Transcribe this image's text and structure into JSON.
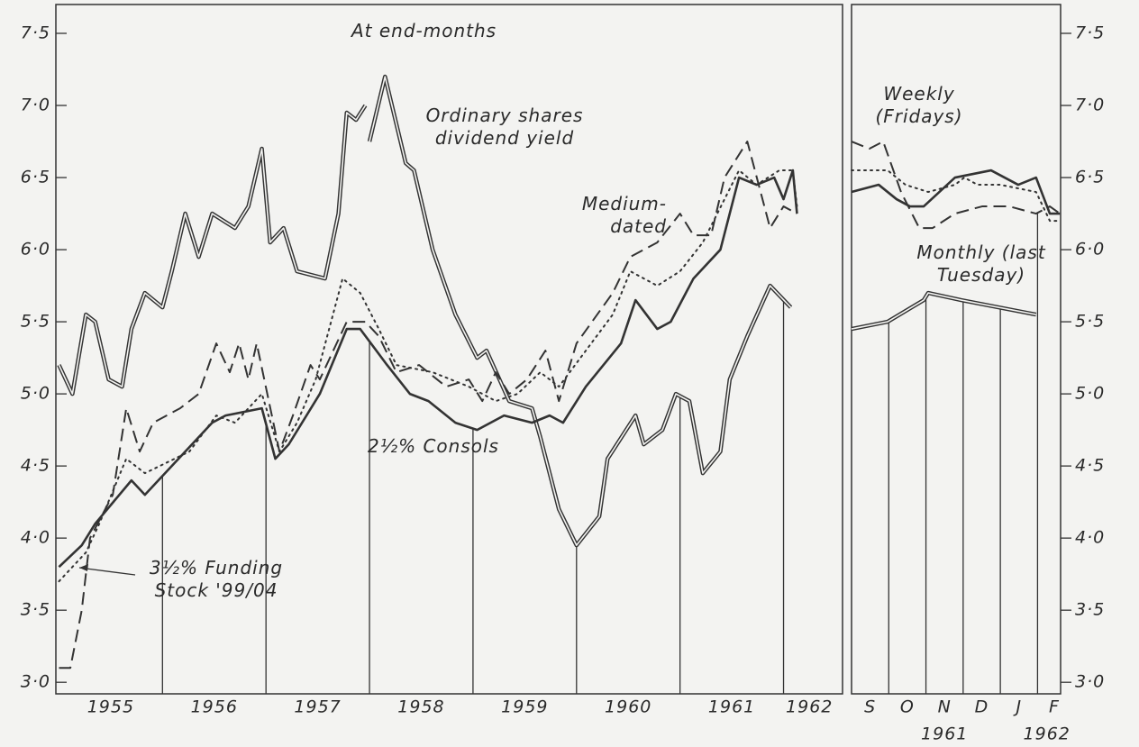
{
  "chart_data": [
    {
      "type": "line",
      "annotations": [
        "At end-months"
      ],
      "xlim": [
        1954.97,
        1962.57
      ],
      "ylim": [
        2.92,
        7.7
      ],
      "ytick_side": "left",
      "yticks": [
        {
          "value": 3.0,
          "label": "3·0"
        },
        {
          "value": 3.5,
          "label": "3·5"
        },
        {
          "value": 4.0,
          "label": "4·0"
        },
        {
          "value": 4.5,
          "label": "4·5"
        },
        {
          "value": 5.0,
          "label": "5·0"
        },
        {
          "value": 5.5,
          "label": "5·5"
        },
        {
          "value": 6.0,
          "label": "6·0"
        },
        {
          "value": 6.5,
          "label": "6·5"
        },
        {
          "value": 7.0,
          "label": "7·0"
        },
        {
          "value": 7.5,
          "label": "7·5"
        }
      ],
      "xticks": [
        {
          "value": 1955.5,
          "label": "1955"
        },
        {
          "value": 1956.5,
          "label": "1956"
        },
        {
          "value": 1957.5,
          "label": "1957"
        },
        {
          "value": 1958.5,
          "label": "1958"
        },
        {
          "value": 1959.5,
          "label": "1959"
        },
        {
          "value": 1960.5,
          "label": "1960"
        },
        {
          "value": 1961.5,
          "label": "1961"
        },
        {
          "value": 1962.25,
          "label": "1962"
        }
      ],
      "vlines": [
        1956,
        1957,
        1958,
        1959,
        1960,
        1961,
        1962
      ],
      "series": [
        {
          "name": "Ordinary shares dividend yield",
          "style": "double",
          "color": "#333333",
          "x": [
            1955.0,
            1955.13,
            1955.26,
            1955.35,
            1955.48,
            1955.61,
            1955.7,
            1955.83,
            1956.0,
            1956.09,
            1956.22,
            1956.35,
            1956.48,
            1956.7,
            1956.83,
            1956.96,
            1957.04,
            1957.17,
            1957.3,
            1957.57,
            1957.7,
            1957.78,
            1957.87,
            1957.96,
            1957.98,
            1958.0,
            1958.15,
            1958.35,
            1958.43,
            1958.61,
            1958.83,
            1959.04,
            1959.13,
            1959.35,
            1959.57,
            1959.65,
            1959.83,
            1960.0,
            1960.22,
            1960.3,
            1960.57,
            1960.65,
            1960.83,
            1960.96,
            1961.09,
            1961.22,
            1961.39,
            1961.48,
            1961.65,
            1961.87,
            1962.07
          ],
          "values": [
            5.2,
            5.0,
            5.55,
            5.5,
            5.1,
            5.05,
            5.45,
            5.7,
            5.6,
            5.85,
            6.25,
            5.95,
            6.25,
            6.15,
            6.3,
            6.7,
            6.05,
            6.15,
            5.85,
            5.8,
            6.25,
            6.95,
            6.9,
            7.0,
            null,
            6.75,
            7.2,
            6.6,
            6.55,
            6.0,
            5.55,
            5.25,
            5.3,
            4.95,
            4.9,
            4.7,
            4.2,
            3.95,
            4.15,
            4.55,
            4.85,
            4.65,
            4.75,
            5.0,
            4.95,
            4.45,
            4.6,
            5.1,
            5.4,
            5.75,
            5.6
          ]
        },
        {
          "name": "2½% Consols",
          "style": "solid",
          "color": "#333333",
          "x": [
            1955.0,
            1955.22,
            1955.35,
            1955.7,
            1955.83,
            1956.09,
            1956.22,
            1956.48,
            1956.61,
            1956.96,
            1957.09,
            1957.22,
            1957.52,
            1957.78,
            1957.91,
            1958.17,
            1958.39,
            1958.57,
            1958.83,
            1959.04,
            1959.3,
            1959.57,
            1959.74,
            1959.87,
            1960.09,
            1960.43,
            1960.57,
            1960.78,
            1960.91,
            1961.13,
            1961.39,
            1961.57,
            1961.74,
            1961.91,
            1962.0,
            1962.09,
            1962.13
          ],
          "values": [
            3.8,
            3.95,
            4.1,
            4.4,
            4.3,
            4.5,
            4.6,
            4.8,
            4.85,
            4.9,
            4.55,
            4.65,
            5.0,
            5.45,
            5.45,
            5.2,
            5.0,
            4.95,
            4.8,
            4.75,
            4.85,
            4.8,
            4.85,
            4.8,
            5.05,
            5.35,
            5.65,
            5.45,
            5.5,
            5.8,
            6.0,
            6.5,
            6.45,
            6.5,
            6.35,
            6.55,
            6.25
          ]
        },
        {
          "name": "Medium-dated",
          "style": "dashed",
          "color": "#333333",
          "x": [
            1955.0,
            1955.11,
            1955.22,
            1955.3,
            1955.52,
            1955.65,
            1955.78,
            1955.91,
            1956.17,
            1956.35,
            1956.52,
            1956.65,
            1956.74,
            1956.83,
            1956.91,
            1957.13,
            1957.26,
            1957.43,
            1957.52,
            1957.78,
            1957.96,
            1958.09,
            1958.26,
            1958.48,
            1958.74,
            1958.96,
            1959.09,
            1959.22,
            1959.35,
            1959.52,
            1959.7,
            1959.83,
            1960.0,
            1960.35,
            1960.52,
            1960.78,
            1961.0,
            1961.13,
            1961.3,
            1961.43,
            1961.65,
            1961.87,
            1962.0,
            1962.13
          ],
          "values": [
            3.1,
            3.1,
            3.5,
            4.0,
            4.3,
            4.9,
            4.6,
            4.8,
            4.9,
            5.0,
            5.35,
            5.15,
            5.35,
            5.1,
            5.35,
            4.6,
            4.85,
            5.2,
            5.1,
            5.5,
            5.5,
            5.4,
            5.15,
            5.2,
            5.05,
            5.1,
            4.95,
            5.15,
            5.0,
            5.1,
            5.3,
            4.95,
            5.35,
            5.7,
            5.95,
            6.05,
            6.25,
            6.1,
            6.1,
            6.5,
            6.75,
            6.15,
            6.3,
            6.25
          ]
        },
        {
          "name": "3½% Funding Stock '99/04",
          "style": "dotted",
          "color": "#333333",
          "x": [
            1955.0,
            1955.26,
            1955.39,
            1955.65,
            1955.83,
            1956.26,
            1956.52,
            1956.7,
            1956.96,
            1957.13,
            1957.3,
            1957.48,
            1957.74,
            1957.91,
            1958.09,
            1958.26,
            1958.61,
            1958.96,
            1959.22,
            1959.43,
            1959.65,
            1959.83,
            1960.09,
            1960.35,
            1960.52,
            1960.78,
            1961.0,
            1961.22,
            1961.57,
            1961.74,
            1961.96,
            1962.09,
            1962.13
          ],
          "values": [
            3.7,
            3.9,
            4.1,
            4.55,
            4.45,
            4.6,
            4.85,
            4.8,
            5.0,
            4.6,
            4.8,
            5.1,
            5.8,
            5.7,
            5.45,
            5.2,
            5.15,
            5.05,
            4.95,
            5.0,
            5.15,
            5.05,
            5.3,
            5.55,
            5.85,
            5.75,
            5.85,
            6.05,
            6.55,
            6.45,
            6.55,
            6.55,
            6.3
          ]
        }
      ]
    },
    {
      "type": "line",
      "annotations": [
        "Weekly (Fridays)",
        "Monthly (last Tuesday)"
      ],
      "xlim": [
        0,
        5.62
      ],
      "ylim": [
        2.92,
        7.7
      ],
      "ytick_side": "right",
      "yticks": [
        {
          "value": 3.0,
          "label": "3·0"
        },
        {
          "value": 3.5,
          "label": "3·5"
        },
        {
          "value": 4.0,
          "label": "4·0"
        },
        {
          "value": 4.5,
          "label": "4·5"
        },
        {
          "value": 5.0,
          "label": "5·0"
        },
        {
          "value": 5.5,
          "label": "5·5"
        },
        {
          "value": 6.0,
          "label": "6·0"
        },
        {
          "value": 6.5,
          "label": "6·5"
        },
        {
          "value": 7.0,
          "label": "7·0"
        },
        {
          "value": 7.5,
          "label": "7·5"
        }
      ],
      "xticks": [
        {
          "value": 0.5,
          "label": "S"
        },
        {
          "value": 1.5,
          "label": "O"
        },
        {
          "value": 2.5,
          "label": "N"
        },
        {
          "value": 3.5,
          "label": "D"
        },
        {
          "value": 4.5,
          "label": "J"
        },
        {
          "value": 5.45,
          "label": "F"
        }
      ],
      "x_sublabels": [
        {
          "value": 2.5,
          "label": "1961"
        },
        {
          "value": 5.25,
          "label": "1962"
        }
      ],
      "vlines": [
        1,
        2,
        3,
        4,
        5
      ],
      "series": [
        {
          "style": "dashed",
          "color": "#333333",
          "x": [
            0,
            0.48,
            0.85,
            1.33,
            1.82,
            2.18,
            2.78,
            3.51,
            4.24,
            4.96,
            5.33,
            5.6
          ],
          "values": [
            6.75,
            6.7,
            6.75,
            6.4,
            6.15,
            6.15,
            6.25,
            6.3,
            6.3,
            6.25,
            6.3,
            6.25
          ]
        },
        {
          "style": "dotted",
          "color": "#333333",
          "x": [
            0,
            0.97,
            1.45,
            2.06,
            2.78,
            3.03,
            3.39,
            4.0,
            4.96,
            5.33,
            5.6
          ],
          "values": [
            6.55,
            6.55,
            6.45,
            6.4,
            6.45,
            6.5,
            6.45,
            6.45,
            6.4,
            6.2,
            6.2
          ]
        },
        {
          "style": "solid",
          "color": "#333333",
          "x": [
            0,
            0.73,
            1.21,
            1.57,
            1.94,
            2.78,
            3.75,
            4.48,
            4.96,
            5.33,
            5.6
          ],
          "values": [
            6.4,
            6.45,
            6.35,
            6.3,
            6.3,
            6.5,
            6.55,
            6.45,
            6.5,
            6.25,
            6.25
          ]
        },
        {
          "style": "double",
          "color": "#333333",
          "x": [
            0,
            0.97,
            1.94,
            2.06,
            2.95,
            3.95,
            4.96
          ],
          "values": [
            5.45,
            5.5,
            5.65,
            5.7,
            5.65,
            5.6,
            5.55
          ]
        }
      ]
    }
  ]
}
